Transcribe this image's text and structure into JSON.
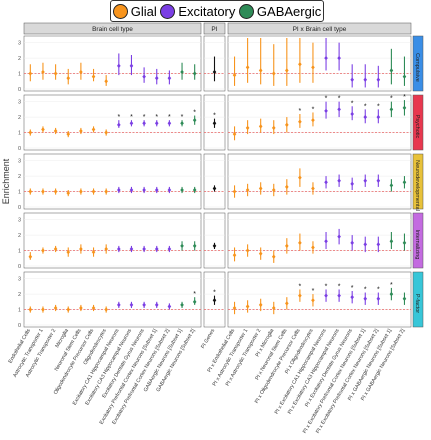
{
  "legend": [
    {
      "label": "Glial",
      "color": "#f7941d"
    },
    {
      "label": "Excitatory",
      "color": "#7b3fe4"
    },
    {
      "label": "GABAergic",
      "color": "#2e8b57"
    }
  ],
  "ylabel": "Enrichment",
  "panel_titles": [
    "Brain cell type",
    "PI",
    "PI x Brain cell type"
  ],
  "row_labels": [
    {
      "label": "Compulsive",
      "color": "#3a8ee6"
    },
    {
      "label": "Psychotic",
      "color": "#e8384f"
    },
    {
      "label": "Neurodevelopmental",
      "color": "#e8c23a"
    },
    {
      "label": "Internalizing",
      "color": "#c36be0"
    },
    {
      "label": "P-factor",
      "color": "#37c6d8"
    }
  ],
  "yticks": [
    "0",
    "1",
    "2",
    "3"
  ],
  "x_labels_left": [
    "Endothelial Cells",
    "Astrocytic Transporter 1",
    "Astrocytic Transporter 2",
    "Microglia",
    "Neuronal Stem Cells",
    "Oligodendrocyte Precursor Cells",
    "Oligodendrocytes",
    "Excitatory CA1 Hippocampal Neurons",
    "Excitatory CA3 Hippocampal Neurons",
    "Excitatory Dentate Gyrus Neurons",
    "Excitatory Prefrontal Cortex Neurons [Subset 1]",
    "Excitatory Prefrontal Cortex Neurons [Subset 2]",
    "GABAergic Neurons [Subset 1]",
    "GABAergic Neurons [Subset 2]"
  ],
  "x_labels_mid": [
    "PI Genes"
  ],
  "x_labels_right": [
    "PI x Endothelial Cells",
    "PI x Astrocytic Transporter 1",
    "PI x Astrocytic Transporter 2",
    "PI x Microglia",
    "PI x Neuronal Stem Cells",
    "PI x Oligodendrocyte Precursor Cells",
    "PI x Oligodendrocytes",
    "PI x Excitatory CA1 Hippocampal Neurons",
    "PI x Excitatory CA3 Hippocampal Neurons",
    "PI x Excitatory Dentate Gyrus Neurons",
    "PI x Excitatory Prefrontal Cortex Neurons [Subset 1]",
    "PI x Excitatory Prefrontal Cortex Neurons [Subset 2]",
    "PI x GABAergic Neurons [Subset 1]",
    "PI x GABAergic Neurons [Subset 2]"
  ],
  "chart_data": {
    "type": "scatter",
    "ylabel": "Enrichment",
    "reference_line": 1,
    "cell_groups_left": [
      "G",
      "G",
      "G",
      "G",
      "G",
      "G",
      "G",
      "E",
      "E",
      "E",
      "E",
      "E",
      "A",
      "A"
    ],
    "cell_groups_right": [
      "G",
      "G",
      "G",
      "G",
      "G",
      "G",
      "G",
      "E",
      "E",
      "E",
      "E",
      "E",
      "A",
      "A"
    ],
    "rows": [
      {
        "name": "Compulsive",
        "ylim": [
          0,
          3.3
        ],
        "left": {
          "est": [
            1.0,
            1.1,
            1.0,
            0.7,
            1.1,
            0.8,
            0.5,
            1.5,
            1.5,
            0.8,
            0.7,
            0.7,
            1.1,
            1.0
          ],
          "lo": [
            0.5,
            0.6,
            0.6,
            0.3,
            0.6,
            0.5,
            0.2,
            0.9,
            0.9,
            0.4,
            0.3,
            0.3,
            0.6,
            0.6
          ],
          "hi": [
            1.6,
            1.7,
            1.6,
            1.3,
            1.7,
            1.3,
            0.9,
            2.3,
            2.2,
            1.4,
            1.3,
            1.2,
            1.7,
            1.6
          ],
          "sig": [
            0,
            0,
            0,
            0,
            0,
            0,
            0,
            0,
            0,
            0,
            0,
            0,
            0,
            0
          ]
        },
        "mid": {
          "est": [
            1.1
          ],
          "lo": [
            0.5
          ],
          "hi": [
            2.1
          ],
          "sig": [
            0
          ]
        },
        "right": {
          "est": [
            0.9,
            1.4,
            1.2,
            1.0,
            1.2,
            1.6,
            1.4,
            2.0,
            2.0,
            0.6,
            0.6,
            0.6,
            1.2,
            0.8
          ],
          "lo": [
            0.2,
            0.4,
            0.3,
            0.2,
            0.2,
            0.4,
            0.4,
            1.2,
            1.2,
            0.1,
            0.1,
            0.1,
            0.3,
            0.2
          ],
          "hi": [
            2.1,
            3.3,
            3.3,
            2.9,
            3.3,
            3.3,
            3.0,
            3.3,
            3.0,
            1.6,
            1.6,
            1.5,
            2.6,
            2.1
          ],
          "sig": [
            0,
            0,
            0,
            0,
            0,
            0,
            0,
            0,
            0,
            0,
            0,
            0,
            0,
            0
          ]
        }
      },
      {
        "name": "Psychotic",
        "ylim": [
          0,
          3.3
        ],
        "left": {
          "est": [
            1.0,
            1.2,
            1.1,
            0.9,
            1.1,
            1.2,
            1.0,
            1.5,
            1.6,
            1.6,
            1.6,
            1.6,
            1.6,
            1.8
          ],
          "lo": [
            0.8,
            1.0,
            0.9,
            0.7,
            0.9,
            1.0,
            0.8,
            1.3,
            1.4,
            1.4,
            1.4,
            1.4,
            1.4,
            1.5
          ],
          "hi": [
            1.2,
            1.4,
            1.3,
            1.1,
            1.3,
            1.4,
            1.2,
            1.8,
            1.8,
            1.8,
            1.8,
            1.8,
            1.8,
            2.1
          ],
          "sig": [
            0,
            0,
            0,
            0,
            0,
            0,
            0,
            1,
            1,
            1,
            1,
            1,
            1,
            1
          ]
        },
        "mid": {
          "est": [
            1.6
          ],
          "lo": [
            1.3
          ],
          "hi": [
            1.9
          ],
          "sig": [
            1
          ]
        },
        "right": {
          "est": [
            0.9,
            1.3,
            1.4,
            1.3,
            1.5,
            1.7,
            1.8,
            2.4,
            2.5,
            2.2,
            2.0,
            2.0,
            2.5,
            2.6
          ],
          "lo": [
            0.5,
            0.9,
            1.0,
            0.9,
            1.0,
            1.3,
            1.4,
            1.9,
            2.0,
            1.8,
            1.6,
            1.6,
            2.0,
            2.1
          ],
          "hi": [
            1.4,
            1.8,
            1.9,
            1.8,
            2.0,
            2.2,
            2.3,
            3.0,
            3.0,
            2.7,
            2.5,
            2.5,
            3.0,
            3.1
          ],
          "sig": [
            0,
            0,
            0,
            0,
            0,
            1,
            1,
            1,
            1,
            1,
            1,
            1,
            1,
            1
          ]
        }
      },
      {
        "name": "Neurodevelopmental",
        "ylim": [
          0,
          3.3
        ],
        "left": {
          "est": [
            1.0,
            1.0,
            1.0,
            0.9,
            1.0,
            1.0,
            1.0,
            1.1,
            1.1,
            1.1,
            1.1,
            1.1,
            1.1,
            1.1
          ],
          "lo": [
            0.8,
            0.8,
            0.8,
            0.7,
            0.8,
            0.8,
            0.8,
            0.9,
            0.9,
            0.9,
            0.9,
            0.9,
            0.9,
            0.9
          ],
          "hi": [
            1.2,
            1.2,
            1.2,
            1.1,
            1.2,
            1.2,
            1.2,
            1.3,
            1.3,
            1.3,
            1.3,
            1.3,
            1.3,
            1.3
          ],
          "sig": [
            0,
            0,
            0,
            0,
            0,
            0,
            0,
            0,
            0,
            0,
            0,
            0,
            0,
            0
          ]
        },
        "mid": {
          "est": [
            1.2
          ],
          "lo": [
            1.0
          ],
          "hi": [
            1.4
          ],
          "sig": [
            0
          ]
        },
        "right": {
          "est": [
            1.0,
            1.1,
            1.2,
            1.1,
            1.3,
            1.9,
            1.2,
            1.6,
            1.7,
            1.5,
            1.7,
            1.7,
            1.4,
            1.6
          ],
          "lo": [
            0.6,
            0.7,
            0.8,
            0.7,
            0.8,
            1.3,
            0.8,
            1.2,
            1.3,
            1.1,
            1.3,
            1.3,
            1.0,
            1.2
          ],
          "hi": [
            1.4,
            1.5,
            1.6,
            1.5,
            1.8,
            2.5,
            1.6,
            2.0,
            2.1,
            1.9,
            2.1,
            2.1,
            1.8,
            2.0
          ],
          "sig": [
            0,
            0,
            0,
            0,
            0,
            0,
            0,
            0,
            0,
            0,
            0,
            0,
            0,
            0
          ]
        }
      },
      {
        "name": "Internalizing",
        "ylim": [
          0,
          3.3
        ],
        "left": {
          "est": [
            0.6,
            1.0,
            1.1,
            0.9,
            1.1,
            0.9,
            1.1,
            1.1,
            1.1,
            1.1,
            1.1,
            1.1,
            1.3,
            1.3
          ],
          "lo": [
            0.4,
            0.8,
            0.9,
            0.6,
            0.8,
            0.6,
            0.8,
            0.9,
            0.9,
            0.9,
            0.9,
            0.9,
            1.0,
            1.0
          ],
          "hi": [
            0.9,
            1.2,
            1.3,
            1.2,
            1.4,
            1.2,
            1.4,
            1.3,
            1.3,
            1.3,
            1.3,
            1.3,
            1.6,
            1.6
          ],
          "sig": [
            0,
            0,
            0,
            0,
            0,
            0,
            0,
            0,
            0,
            0,
            0,
            0,
            0,
            0
          ]
        },
        "mid": {
          "est": [
            1.3
          ],
          "lo": [
            1.1
          ],
          "hi": [
            1.5
          ],
          "sig": [
            0
          ]
        },
        "right": {
          "est": [
            0.7,
            1.0,
            0.8,
            0.6,
            1.3,
            1.5,
            1.2,
            1.6,
            1.9,
            1.5,
            1.4,
            1.4,
            1.6,
            1.5
          ],
          "lo": [
            0.3,
            0.6,
            0.4,
            0.2,
            0.8,
            1.0,
            0.8,
            1.1,
            1.4,
            1.0,
            0.9,
            0.9,
            1.1,
            1.0
          ],
          "hi": [
            1.2,
            1.4,
            1.2,
            1.0,
            1.8,
            2.1,
            1.6,
            2.2,
            2.4,
            2.0,
            1.9,
            1.9,
            2.2,
            2.1
          ],
          "sig": [
            0,
            0,
            0,
            0,
            0,
            0,
            0,
            0,
            0,
            0,
            0,
            0,
            0,
            0
          ]
        }
      },
      {
        "name": "P-factor",
        "ylim": [
          0,
          3.3
        ],
        "left": {
          "est": [
            1.0,
            1.0,
            1.1,
            1.0,
            1.1,
            1.1,
            1.0,
            1.3,
            1.3,
            1.3,
            1.3,
            1.2,
            1.3,
            1.5
          ],
          "lo": [
            0.8,
            0.8,
            0.9,
            0.8,
            0.9,
            0.9,
            0.8,
            1.1,
            1.1,
            1.1,
            1.1,
            1.0,
            1.1,
            1.3
          ],
          "hi": [
            1.2,
            1.2,
            1.3,
            1.2,
            1.3,
            1.3,
            1.2,
            1.5,
            1.5,
            1.5,
            1.5,
            1.4,
            1.5,
            1.8
          ],
          "sig": [
            0,
            0,
            0,
            0,
            0,
            0,
            0,
            0,
            0,
            0,
            0,
            0,
            0,
            1
          ]
        },
        "mid": {
          "est": [
            1.6
          ],
          "lo": [
            1.3
          ],
          "hi": [
            1.9
          ],
          "sig": [
            1
          ]
        },
        "right": {
          "est": [
            1.1,
            1.2,
            1.3,
            1.1,
            1.4,
            1.9,
            1.6,
            1.9,
            1.9,
            1.8,
            1.7,
            1.7,
            2.0,
            1.7
          ],
          "lo": [
            0.7,
            0.8,
            0.9,
            0.7,
            1.0,
            1.5,
            1.2,
            1.5,
            1.5,
            1.4,
            1.3,
            1.3,
            1.6,
            1.3
          ],
          "hi": [
            1.5,
            1.6,
            1.7,
            1.5,
            1.8,
            2.3,
            2.0,
            2.3,
            2.3,
            2.2,
            2.1,
            2.1,
            2.4,
            2.1
          ],
          "sig": [
            0,
            0,
            0,
            0,
            0,
            1,
            1,
            1,
            1,
            1,
            1,
            1,
            1,
            0
          ]
        }
      }
    ]
  }
}
